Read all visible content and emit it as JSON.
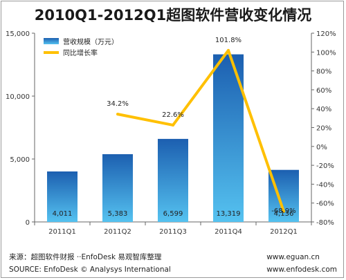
{
  "chart_data": {
    "type": "bar",
    "title": "2010Q1-2012Q1超图软件营收变化情况",
    "categories": [
      "2011Q1",
      "2011Q2",
      "2011Q3",
      "2011Q4",
      "2012Q1"
    ],
    "series": [
      {
        "name": "营收规模（万元）",
        "type": "bar",
        "axis": "left",
        "values": [
          4011,
          5383,
          6599,
          13319,
          4136
        ],
        "value_labels": [
          "4,011",
          "5,383",
          "6,599",
          "13,319",
          "4,136"
        ],
        "color": "#2f7fd0"
      },
      {
        "name": "同比增长率",
        "type": "line",
        "axis": "right",
        "values": [
          null,
          34.2,
          22.6,
          101.8,
          -68.9
        ],
        "value_labels": [
          "",
          "34.2%",
          "22.6%",
          "101.8%",
          "-68.9%"
        ],
        "color": "#ffc000"
      }
    ],
    "y_left": {
      "ylim": [
        0,
        15000
      ],
      "ticks": [
        0,
        5000,
        10000,
        15000
      ],
      "tick_labels": [
        "0",
        "5,000",
        "10,000",
        "15,000"
      ]
    },
    "y_right": {
      "ylim": [
        -80,
        120
      ],
      "ticks": [
        -80,
        -60,
        -40,
        -20,
        0,
        20,
        40,
        60,
        80,
        100,
        120
      ],
      "tick_labels": [
        "-80%",
        "-60%",
        "-40%",
        "-20%",
        "0%",
        "20%",
        "40%",
        "60%",
        "80%",
        "100%",
        "120%"
      ]
    },
    "grid": false,
    "legend_position": "top-left"
  },
  "footer": {
    "source_cn": "来源：超图软件财报 ··EnfoDesk 易观智库整理",
    "source_en": "SOURCE: EnfoDesk © Analysys International",
    "site1": "www.eguan.cn",
    "site2": "www.enfodesk.com"
  }
}
